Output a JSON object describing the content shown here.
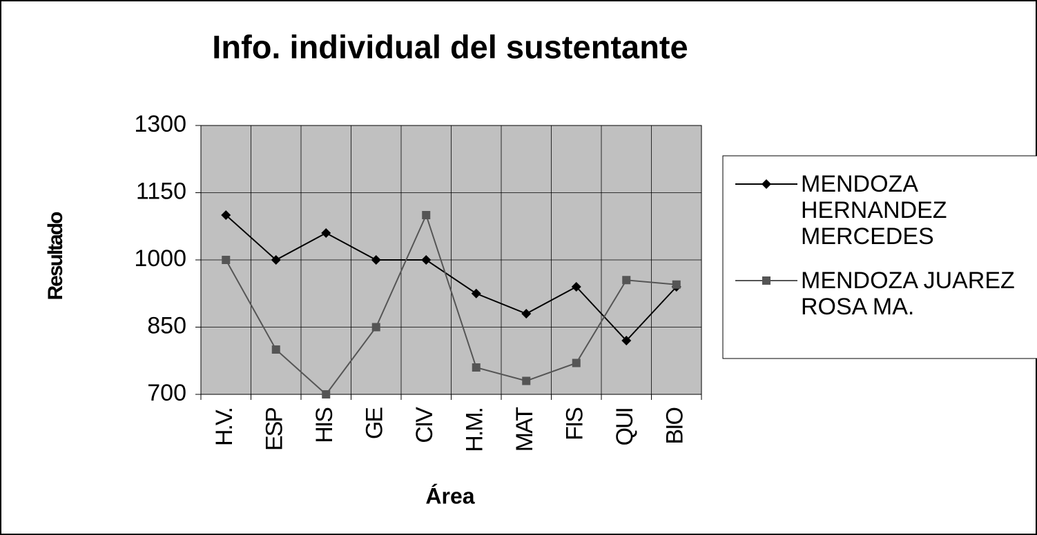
{
  "chart_data": {
    "type": "line",
    "title": "Info. individual del sustentante",
    "x_label": "Área",
    "y_label": "Resultado",
    "categories": [
      "H.V.",
      "ESP",
      "HIS",
      "GE",
      "CIV",
      "H.M.",
      "MAT",
      "FIS",
      "QUI",
      "BIO"
    ],
    "series": [
      {
        "name": "MENDOZA HERNANDEZ MERCEDES",
        "color": "#000000",
        "marker": "diamond",
        "values": [
          1100,
          1000,
          1060,
          1000,
          1000,
          925,
          880,
          940,
          820,
          940
        ]
      },
      {
        "name": "MENDOZA JUAREZ ROSA MA.",
        "color": "#555555",
        "marker": "square",
        "values": [
          1000,
          800,
          700,
          850,
          1100,
          760,
          730,
          770,
          955,
          945
        ]
      }
    ],
    "ylim": [
      700,
      1300
    ],
    "yticks": [
      700,
      850,
      1000,
      1150,
      1300
    ],
    "grid": true,
    "plot_background": "#c0c0c0",
    "legend": "right"
  }
}
